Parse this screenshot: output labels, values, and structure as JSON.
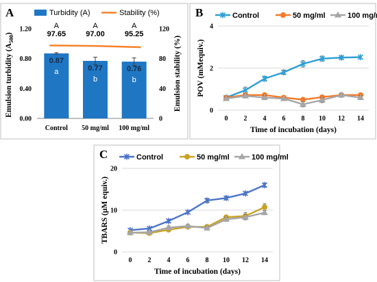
{
  "chart_data": [
    {
      "id": "A",
      "type": "bar",
      "panel_label": "A",
      "categories": [
        "Control",
        "50 mg/ml",
        "100 mg/ml"
      ],
      "series": [
        {
          "name": "Turbidity (A)",
          "kind": "bar",
          "axis": "left",
          "values": [
            0.87,
            0.77,
            0.76
          ],
          "errors": [
            0.01,
            0.05,
            0.05
          ],
          "letters": [
            "a",
            "b",
            "b"
          ],
          "color": "#1f77c4"
        },
        {
          "name": "Stability (%)",
          "kind": "line",
          "axis": "right",
          "values": [
            97.65,
            97.0,
            95.25
          ],
          "letters": [
            "A",
            "A",
            "A"
          ],
          "color": "#f5822a"
        }
      ],
      "ylabel_left": "Emulsion turbidity (A",
      "ylabel_left_sub": "500",
      "ylabel_left_end": ")",
      "ylabel_right": "Emulsion stability (%)",
      "ylim_left": [
        0,
        1.2
      ],
      "ylim_right": [
        0,
        120
      ],
      "yticks_left": [
        "0.00",
        "0.40",
        "0.80",
        "1.20"
      ],
      "yticks_right": [
        "0",
        "40",
        "80",
        "120"
      ],
      "legend": "top",
      "grid": false
    },
    {
      "id": "B",
      "type": "line",
      "panel_label": "B",
      "x": [
        0,
        2,
        4,
        6,
        8,
        10,
        12,
        14
      ],
      "series": [
        {
          "name": "Control",
          "values": [
            0.6,
            0.95,
            1.5,
            1.8,
            2.2,
            2.45,
            2.5,
            2.52
          ],
          "errors": [
            0.05,
            0.15,
            0.12,
            0.1,
            0.15,
            0.12,
            0.08,
            0.05
          ],
          "color": "#2e9fd6",
          "marker": "x"
        },
        {
          "name": "50 mg/ml",
          "values": [
            0.6,
            0.72,
            0.72,
            0.6,
            0.5,
            0.62,
            0.72,
            0.72
          ],
          "errors": [
            0.05,
            0.06,
            0.05,
            0.05,
            0.05,
            0.05,
            0.05,
            0.05
          ],
          "color": "#f57a2a",
          "marker": "circle"
        },
        {
          "name": "100 mg/ml",
          "values": [
            0.55,
            0.68,
            0.6,
            0.55,
            0.28,
            0.48,
            0.72,
            0.6
          ],
          "errors": [
            0.08,
            0.1,
            0.1,
            0.05,
            0.12,
            0.12,
            0.1,
            0.1
          ],
          "color": "#a6a6a6",
          "marker": "triangle"
        }
      ],
      "xlabel": "Time of incubation (days)",
      "ylabel": "POV (mMequiv.)",
      "xticks": [
        "0",
        "2",
        "4",
        "6",
        "8",
        "10",
        "12",
        "14"
      ],
      "yticks": [
        "0",
        "2",
        "4"
      ],
      "ylim": [
        0,
        4
      ],
      "legend": "top",
      "grid": true
    },
    {
      "id": "C",
      "type": "line",
      "panel_label": "C",
      "x": [
        0,
        2,
        4,
        6,
        8,
        10,
        12,
        14
      ],
      "series": [
        {
          "name": "Control",
          "values": [
            5.2,
            5.6,
            7.4,
            9.5,
            12.3,
            12.9,
            14.0,
            16.0
          ],
          "errors": [
            0.3,
            0.3,
            0.4,
            0.3,
            0.5,
            0.4,
            0.4,
            0.5
          ],
          "color": "#4a74c9",
          "marker": "x"
        },
        {
          "name": "50 mg/ml",
          "values": [
            4.6,
            4.5,
            5.3,
            6.0,
            6.0,
            8.3,
            8.6,
            10.7
          ],
          "errors": [
            0.3,
            0.3,
            0.3,
            0.3,
            0.4,
            0.5,
            0.8,
            0.8
          ],
          "color": "#c9a227",
          "marker": "circle"
        },
        {
          "name": "100 mg/ml",
          "values": [
            4.6,
            4.7,
            5.8,
            6.2,
            5.7,
            7.8,
            8.3,
            9.4
          ],
          "errors": [
            0.3,
            0.3,
            0.4,
            0.4,
            0.4,
            0.5,
            0.6,
            0.5
          ],
          "color": "#a6a6a6",
          "marker": "triangle"
        }
      ],
      "xlabel": "Time of incubation (days)",
      "ylabel": "TBARS (μM equiv.)",
      "xticks": [
        "0",
        "2",
        "4",
        "6",
        "8",
        "10",
        "12",
        "14"
      ],
      "yticks": [
        "0",
        "10",
        "20"
      ],
      "ylim": [
        0,
        20
      ],
      "legend": "top",
      "grid": true
    }
  ]
}
